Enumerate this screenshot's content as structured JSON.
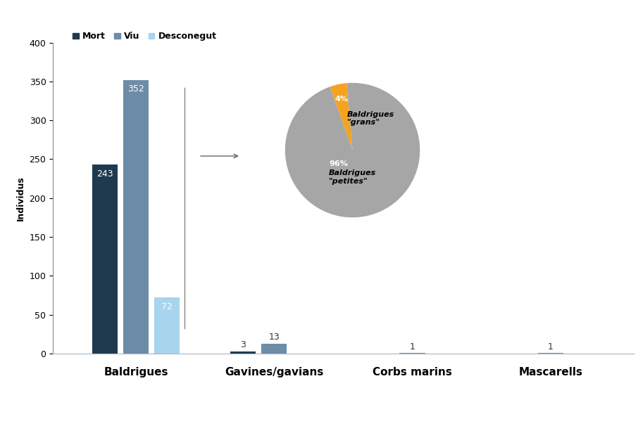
{
  "chart_data": [
    {
      "type": "bar",
      "y_label": "Individus",
      "categories": [
        "Baldrigues",
        "Gavines/gavians",
        "Corbs marins",
        "Mascarells"
      ],
      "series": [
        {
          "name": "Mort",
          "color": "#1f3a4f",
          "values": [
            243,
            3,
            null,
            null
          ]
        },
        {
          "name": "Viu",
          "color": "#6d8ca8",
          "values": [
            352,
            13,
            1,
            1
          ]
        },
        {
          "name": "Desconegut",
          "color": "#a8d4ee",
          "values": [
            72,
            null,
            null,
            null
          ]
        }
      ],
      "ylim": [
        0,
        400
      ],
      "yticks": [
        0,
        50,
        100,
        150,
        200,
        250,
        300,
        350,
        400
      ],
      "grid": false,
      "legend": "upper left",
      "data_labels": true
    },
    {
      "type": "pie",
      "categories": [
        "Baldrigues\n\"grans\"",
        "Baldrigues\n\"petites\""
      ],
      "values": [
        4,
        96
      ],
      "value_labels": [
        "4%",
        "96%"
      ],
      "colors": [
        "#f5a21e",
        "#a6a6a6"
      ],
      "data_labels": true
    }
  ]
}
